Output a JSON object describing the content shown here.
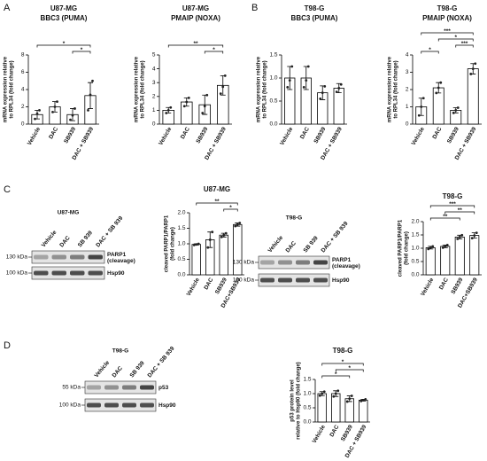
{
  "panels": [
    "A",
    "B",
    "C",
    "D"
  ],
  "blots": [
    {
      "title": "U87-MG",
      "lanes": [
        "Vehicle",
        "DAC",
        "SB 939",
        "DAC + SB 939"
      ],
      "markers": [
        "130 kDa",
        "100 kDa"
      ],
      "bands": [
        "PARP1\n(cleavage)",
        "Hsp90"
      ]
    },
    {
      "title": "T98-G",
      "lanes": [
        "Vehicle",
        "DAC",
        "SB 939",
        "DAC + SB 939"
      ],
      "markers": [
        "130 kDa",
        "100 kDa"
      ],
      "bands": [
        "PARP1\n(cleavage)",
        "Hsp90"
      ]
    },
    {
      "title": "T98-G",
      "lanes": [
        "Vehicle",
        "DAC",
        "SB 939",
        "DAC + SB 939"
      ],
      "markers": [
        "55 kDa",
        "100 kDa"
      ],
      "bands": [
        "p53",
        "Hsp90"
      ]
    }
  ],
  "chart_data": [
    {
      "type": "bar",
      "title": "U87-MG",
      "subtitle": "BBC3 (PUMA)",
      "ylabel": [
        "mRNA expression relative",
        "to RPL34 (fold change)"
      ],
      "categories": [
        "Vehicle",
        "DAC",
        "SB939",
        "DAC + SB939"
      ],
      "values": [
        1.1,
        2.0,
        1.1,
        3.3
      ],
      "errors": [
        0.5,
        0.6,
        0.7,
        1.5
      ],
      "points": [
        [
          0.6,
          1.2,
          1.6
        ],
        [
          1.4,
          2.0,
          2.6
        ],
        [
          0.5,
          1.0,
          1.8
        ],
        [
          1.6,
          3.4,
          5.0
        ]
      ],
      "ylim": [
        0,
        8
      ],
      "yticks": [
        0,
        2,
        4,
        6,
        8
      ],
      "color": "#ffffff",
      "annotations": [
        {
          "pair": [
            "Vehicle",
            "DAC + SB939"
          ],
          "label": "*"
        },
        {
          "pair": [
            "SB939",
            "DAC + SB939"
          ],
          "label": "*"
        }
      ]
    },
    {
      "type": "bar",
      "title": "U87-MG",
      "subtitle": "PMAIP (NOXA)",
      "ylabel": [
        "mRNA expression relative",
        "to RPL34 (fold change)"
      ],
      "categories": [
        "Vehicle",
        "DAC",
        "SB939",
        "DAC + SB939"
      ],
      "values": [
        1.0,
        1.6,
        1.4,
        2.8
      ],
      "errors": [
        0.2,
        0.3,
        0.7,
        0.7
      ],
      "points": [
        [
          0.8,
          1.0,
          1.2
        ],
        [
          1.3,
          1.6,
          1.9
        ],
        [
          0.8,
          1.3,
          2.1
        ],
        [
          2.2,
          2.7,
          3.5
        ]
      ],
      "ylim": [
        0,
        5
      ],
      "yticks": [
        0,
        1,
        2,
        3,
        4,
        5
      ],
      "color": "#ffffff",
      "annotations": [
        {
          "pair": [
            "Vehicle",
            "DAC + SB939"
          ],
          "label": "**"
        },
        {
          "pair": [
            "SB939",
            "DAC + SB939"
          ],
          "label": "*"
        }
      ]
    },
    {
      "type": "bar",
      "title": "T98-G",
      "subtitle": "BBC3 (PUMA)",
      "ylabel": [
        "mRNA expression relative",
        "to RPL34 (fold change)"
      ],
      "categories": [
        "Vehicle",
        "DAC",
        "SB939",
        "DAC + SB939"
      ],
      "values": [
        1.0,
        1.0,
        0.68,
        0.78
      ],
      "errors": [
        0.25,
        0.25,
        0.15,
        0.1
      ],
      "points": [
        [
          0.8,
          0.95,
          1.25
        ],
        [
          0.8,
          0.95,
          1.25
        ],
        [
          0.55,
          0.68,
          0.82
        ],
        [
          0.7,
          0.78,
          0.86
        ]
      ],
      "ylim": [
        0,
        1.5
      ],
      "yticks": [
        {
          "value": 0,
          "label": "0.0"
        },
        0.5,
        {
          "value": 1,
          "label": "1.0"
        },
        1.5
      ],
      "color": "#ffffff",
      "annotations": []
    },
    {
      "type": "bar",
      "title": "T98-G",
      "subtitle": "PMAIP (NOXA)",
      "ylabel": [
        "mRNA expression relative",
        "to RPL34 (fold change)"
      ],
      "categories": [
        "Vehicle",
        "DAC",
        "SB939",
        "DAC + SB939"
      ],
      "values": [
        1.0,
        2.1,
        0.8,
        3.2
      ],
      "errors": [
        0.5,
        0.3,
        0.15,
        0.3
      ],
      "points": [
        [
          0.5,
          1.0,
          1.5
        ],
        [
          1.8,
          2.1,
          2.4
        ],
        [
          0.65,
          0.8,
          0.95
        ],
        [
          2.9,
          3.2,
          3.5
        ]
      ],
      "ylim": [
        0,
        4
      ],
      "yticks": [
        0,
        1,
        2,
        3,
        4
      ],
      "color": "#ffffff",
      "annotations": [
        {
          "pair": [
            "Vehicle",
            "DAC + SB939"
          ],
          "label": "***"
        },
        {
          "pair": [
            "DAC",
            "DAC + SB939"
          ],
          "label": "*"
        },
        {
          "pair": [
            "SB939",
            "DAC + SB939"
          ],
          "label": "***"
        },
        {
          "pair": [
            "Vehicle",
            "DAC"
          ],
          "label": "*"
        }
      ]
    },
    {
      "type": "bar",
      "title": "U87-MG",
      "ylabel": [
        "cleaved PARP1/PARP1",
        "(fold change)"
      ],
      "categories": [
        "Vehicle",
        "DAC",
        "SB939",
        "DAC+SB939"
      ],
      "values": [
        0.98,
        1.13,
        1.28,
        1.62
      ],
      "errors": [
        0.02,
        0.25,
        0.06,
        0.05
      ],
      "points": [
        [
          0.96,
          0.98,
          1.0
        ],
        [
          0.88,
          1.13,
          1.38
        ],
        [
          1.22,
          1.28,
          1.34
        ],
        [
          1.57,
          1.62,
          1.67
        ]
      ],
      "ylim": [
        0,
        2
      ],
      "yticks": [
        {
          "value": 0,
          "label": "0.0"
        },
        0.5,
        {
          "value": 1,
          "label": "1.0"
        },
        1.5,
        {
          "value": 2,
          "label": "2.0"
        }
      ],
      "color": "#ffffff",
      "annotations": [
        {
          "pair": [
            "Vehicle",
            "DAC+SB939"
          ],
          "label": "**"
        },
        {
          "pair": [
            "SB939",
            "DAC+SB939"
          ],
          "label": "*"
        }
      ]
    },
    {
      "type": "bar",
      "title": "T98-G",
      "ylabel": [
        "cleaved PARP1/PARP1",
        "(fold change)"
      ],
      "categories": [
        "Vehicle",
        "DAC",
        "SB939",
        "DAC+SB939"
      ],
      "values": [
        1.02,
        1.07,
        1.42,
        1.48
      ],
      "errors": [
        0.05,
        0.05,
        0.07,
        0.1
      ],
      "points": [
        [
          0.97,
          1.02,
          1.07
        ],
        [
          1.02,
          1.07,
          1.12
        ],
        [
          1.35,
          1.42,
          1.49
        ],
        [
          1.38,
          1.48,
          1.58
        ]
      ],
      "ylim": [
        0,
        2
      ],
      "yticks": [
        {
          "value": 0,
          "label": "0.0"
        },
        0.5,
        {
          "value": 1,
          "label": "1.0"
        },
        1.5,
        {
          "value": 2,
          "label": "2.0"
        }
      ],
      "color": "#ffffff",
      "annotations": [
        {
          "pair": [
            "Vehicle",
            "DAC+SB939"
          ],
          "label": "***"
        },
        {
          "pair": [
            "DAC",
            "DAC+SB939"
          ],
          "label": "**"
        },
        {
          "pair": [
            "Vehicle",
            "SB939"
          ],
          "label": "**"
        }
      ]
    },
    {
      "type": "bar",
      "title": "T98-G",
      "ylabel": [
        "p53 protein level",
        "relative to Hsp90 (fold change)"
      ],
      "categories": [
        "Vehicle",
        "DAC",
        "SB939",
        "DAC + SB939"
      ],
      "values": [
        1.0,
        1.0,
        0.82,
        0.77
      ],
      "errors": [
        0.07,
        0.1,
        0.1,
        0.03
      ],
      "points": [
        [
          0.93,
          1.0,
          1.07
        ],
        [
          0.9,
          1.0,
          1.1
        ],
        [
          0.72,
          0.82,
          0.92
        ],
        [
          0.74,
          0.77,
          0.8
        ]
      ],
      "ylim": [
        0,
        1.5
      ],
      "yticks": [
        {
          "value": 0,
          "label": "0.0"
        },
        0.5,
        {
          "value": 1,
          "label": "1.0"
        },
        1.5
      ],
      "color": "#ffffff",
      "annotations": [
        {
          "pair": [
            "Vehicle",
            "DAC + SB939"
          ],
          "label": "*"
        },
        {
          "pair": [
            "DAC",
            "DAC + SB939"
          ],
          "label": "*"
        },
        {
          "pair": [
            "Vehicle",
            "SB939"
          ],
          "label": "*"
        }
      ]
    }
  ]
}
